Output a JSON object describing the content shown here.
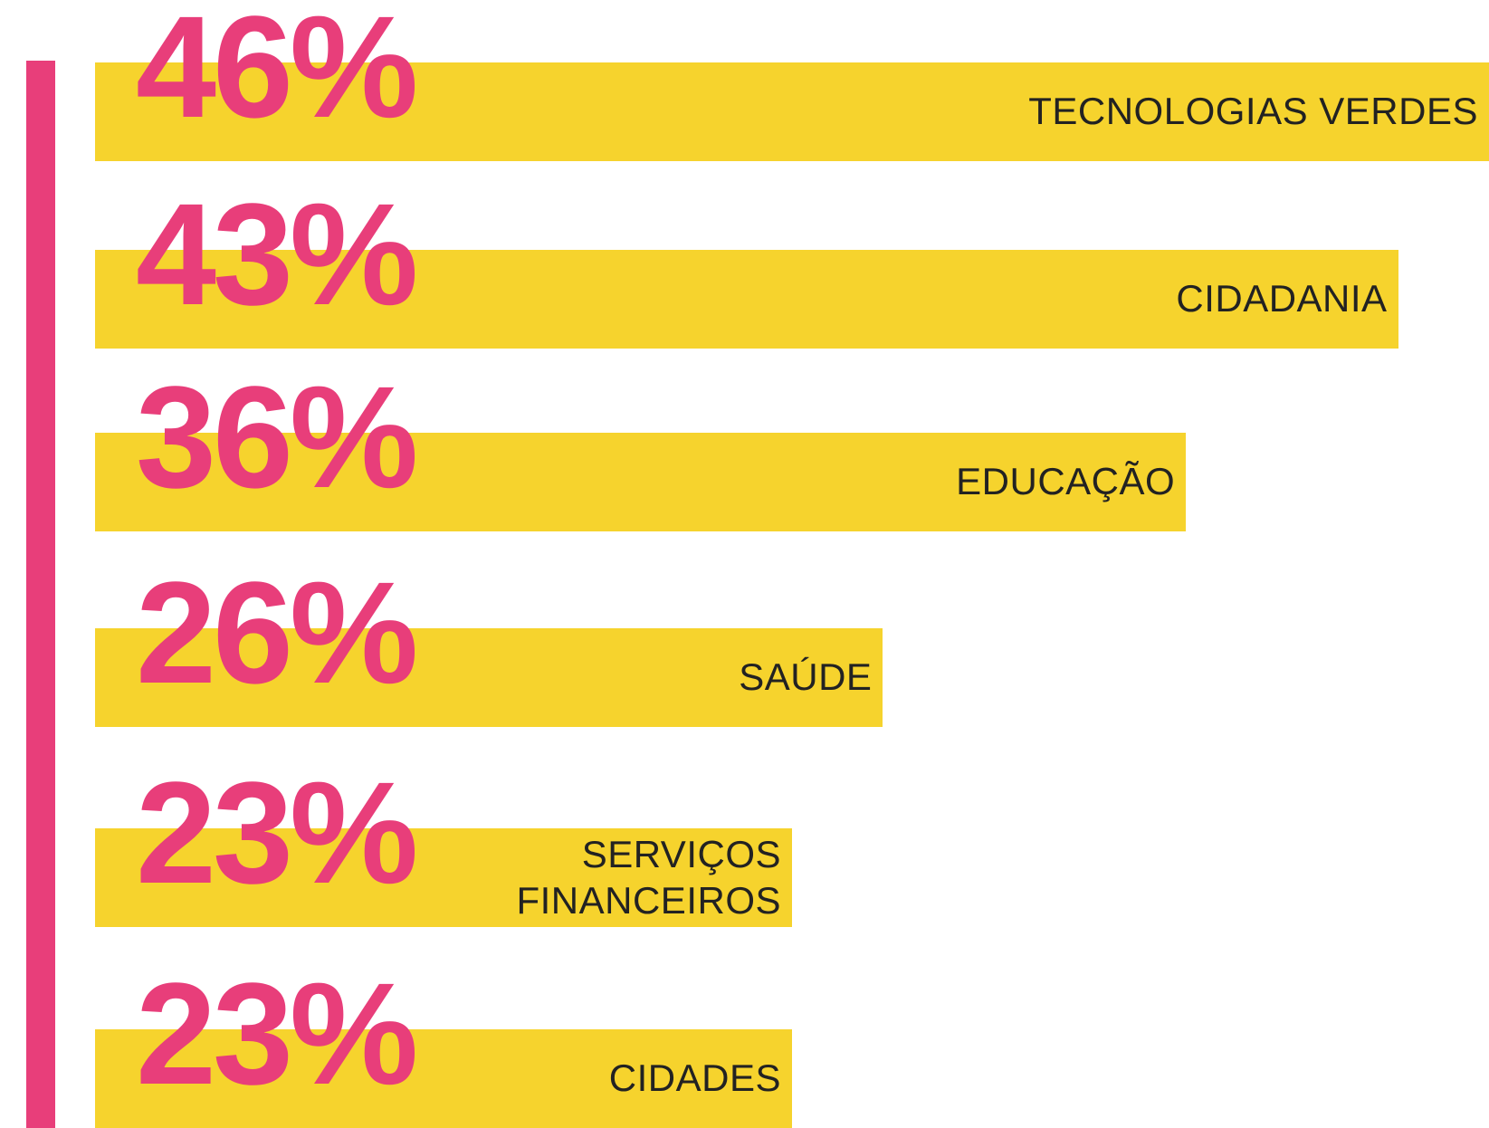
{
  "chart_data": {
    "type": "bar",
    "orientation": "horizontal",
    "categories": [
      "TECNOLOGIAS VERDES",
      "CIDADANIA",
      "EDUCAÇÃO",
      "SAÚDE",
      "SERVIÇOS FINANCEIROS",
      "CIDADES"
    ],
    "values": [
      46,
      43,
      36,
      26,
      23,
      23
    ],
    "value_labels": [
      "46%",
      "43%",
      "36%",
      "26%",
      "23%",
      "23%"
    ],
    "color": "#f6d32d",
    "label_color": "#e83e7a"
  }
}
